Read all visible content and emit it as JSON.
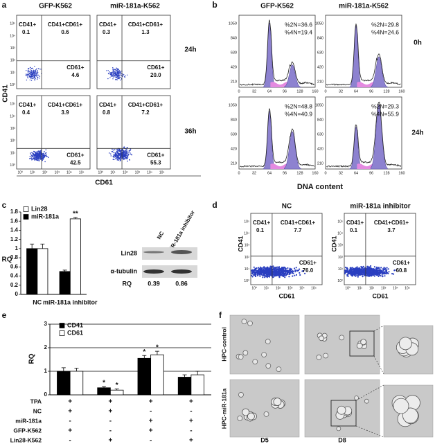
{
  "panels": {
    "a": {
      "label": "a",
      "columns": [
        "GFP-K562",
        "miR-181a-K562"
      ],
      "rows": [
        "24h",
        "36h"
      ],
      "y_label": "CD41",
      "x_label": "CD61",
      "axis_ticks": [
        "10⁰",
        "10¹",
        "10²",
        "10³",
        "10⁴",
        "10⁵"
      ],
      "plots": [
        {
          "ul": [
            "CD41+",
            "0.1"
          ],
          "ur": [
            "CD41+CD61+",
            "0.6"
          ],
          "lr": [
            "CD61+",
            "4.6"
          ]
        },
        {
          "ul": [
            "CD41+",
            "0.3"
          ],
          "ur": [
            "CD41+CD61+",
            "1.3"
          ],
          "lr": [
            "CD61+",
            "20.0"
          ]
        },
        {
          "ul": [
            "CD41+",
            "0.4"
          ],
          "ur": [
            "CD41+CD61+",
            "3.9"
          ],
          "lr": [
            "CD61+",
            "42.5"
          ]
        },
        {
          "ul": [
            "CD41+",
            "0.8"
          ],
          "ur": [
            "CD41+CD61+",
            "7.2"
          ],
          "lr": [
            "CD61+",
            "55.3"
          ]
        }
      ]
    },
    "b": {
      "label": "b",
      "columns": [
        "GFP-K562",
        "miR-181a-K562"
      ],
      "rows": [
        "0h",
        "24h"
      ],
      "x_label": "DNA content",
      "x_ticks": [
        "0",
        "32",
        "64",
        "96",
        "128",
        "160"
      ],
      "y_ticks": [
        "1050",
        "840",
        "630",
        "420",
        "210"
      ],
      "plots": [
        [
          "%2N=36.6",
          "%4N=19.4"
        ],
        [
          "%2N=29.8",
          "%4N=24.6"
        ],
        [
          "%2N=48.8",
          "%4N=40.9"
        ],
        [
          "%2N=29.3",
          "%4N=55.9"
        ]
      ]
    },
    "c": {
      "label": "c",
      "blot": {
        "lanes": [
          "NC",
          "miR-181a inhibitor"
        ],
        "bands": [
          "Lin28",
          "α-tubulin"
        ],
        "rq_label": "RQ",
        "rq": [
          "0.39",
          "0.86"
        ]
      }
    },
    "d": {
      "label": "d",
      "columns": [
        "NC",
        "miR-181a inhibitor"
      ],
      "y_label": "CD41",
      "x_label": "CD61",
      "axis_ticks": [
        "10⁰",
        "10¹",
        "10²",
        "10³",
        "10⁴",
        "10⁵"
      ],
      "plots": [
        {
          "ul": [
            "CD41+",
            "0.1"
          ],
          "ur": [
            "CD41+CD61+",
            "7.7"
          ],
          "lr": [
            "CD61+",
            "76.0"
          ]
        },
        {
          "ul": [
            "CD41+",
            "0.1"
          ],
          "ur": [
            "CD41+CD61+",
            "3.7"
          ],
          "lr": [
            "CD61+",
            "60.8"
          ]
        }
      ]
    },
    "e": {
      "label": "e",
      "conditions": [
        [
          "TPA",
          "+",
          "+",
          "+",
          "+"
        ],
        [
          "NC",
          "+",
          "+",
          "-",
          "-"
        ],
        [
          "miR-181a",
          "-",
          "-",
          "+",
          "+"
        ],
        [
          "GFP-K562",
          "+",
          "-",
          "+",
          "-"
        ],
        [
          "Lin28-K562",
          "-",
          "+",
          "-",
          "+"
        ]
      ]
    },
    "f": {
      "label": "f",
      "rows": [
        "HPC-control",
        "HPC-miR-181a"
      ],
      "columns": [
        "D5",
        "D8"
      ]
    }
  },
  "chart_data": [
    {
      "type": "bar",
      "y_label": "RQ",
      "categories": [
        "NC",
        "miR-181a inhibitor"
      ],
      "ylim": [
        0,
        1.8
      ],
      "yticks": [
        0,
        0.2,
        0.4,
        0.6,
        0.8,
        1,
        1.2,
        1.4,
        1.6,
        1.8
      ],
      "grid": false,
      "series": [
        {
          "name": "Lin28",
          "color": "#ffffff",
          "values": [
            1.0,
            1.65
          ],
          "errors": [
            0.1,
            0.03
          ],
          "significance": [
            null,
            "**"
          ]
        },
        {
          "name": "miR-181a",
          "color": "#000000",
          "values": [
            1.0,
            0.5
          ],
          "errors": [
            0.1,
            0.03
          ],
          "significance": [
            null,
            null
          ]
        }
      ]
    },
    {
      "type": "bar",
      "y_label": "RQ",
      "categories": [
        null,
        null,
        null,
        null
      ],
      "ylim": [
        0,
        3
      ],
      "yticks": [
        0,
        1,
        2,
        3
      ],
      "grid": true,
      "series": [
        {
          "name": "CD41",
          "color": "#000000",
          "values": [
            1.0,
            0.3,
            1.55,
            0.75
          ],
          "errors": [
            0.15,
            0.05,
            0.12,
            0.1
          ],
          "significance": [
            null,
            "*",
            "*",
            null
          ]
        },
        {
          "name": "CD61",
          "color": "#ffffff",
          "values": [
            1.0,
            0.2,
            1.7,
            0.85
          ],
          "errors": [
            0.13,
            0.05,
            0.15,
            0.15
          ],
          "significance": [
            null,
            "*",
            "*",
            null
          ]
        }
      ]
    }
  ]
}
